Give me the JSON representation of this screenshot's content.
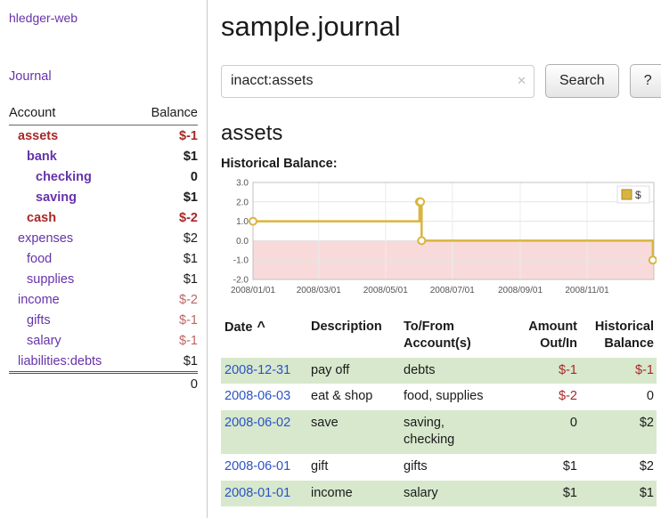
{
  "app": {
    "title": "hledger-web"
  },
  "sidebar": {
    "journal_link": "Journal",
    "account_table": {
      "header": {
        "account": "Account",
        "balance": "Balance"
      },
      "accounts": [
        {
          "name": "assets",
          "balance": "$-1",
          "indent": 0,
          "name_class": "neg bold",
          "bal_class": "neg bold"
        },
        {
          "name": "bank",
          "balance": "$1",
          "indent": 1,
          "name_class": "bold",
          "bal_class": "bold"
        },
        {
          "name": "checking",
          "balance": "0",
          "indent": 2,
          "name_class": "bold",
          "bal_class": "bold"
        },
        {
          "name": "saving",
          "balance": "$1",
          "indent": 2,
          "name_class": "bold",
          "bal_class": "bold"
        },
        {
          "name": "cash",
          "balance": "$-2",
          "indent": 1,
          "name_class": "neg bold",
          "bal_class": "neg bold"
        },
        {
          "name": "expenses",
          "balance": "$2",
          "indent": 0,
          "name_class": "",
          "bal_class": ""
        },
        {
          "name": "food",
          "balance": "$1",
          "indent": 1,
          "name_class": "",
          "bal_class": ""
        },
        {
          "name": "supplies",
          "balance": "$1",
          "indent": 1,
          "name_class": "",
          "bal_class": ""
        },
        {
          "name": "income",
          "balance": "$-2",
          "indent": 0,
          "name_class": "",
          "bal_class": "neg-light"
        },
        {
          "name": "gifts",
          "balance": "$-1",
          "indent": 1,
          "name_class": "",
          "bal_class": "neg-light"
        },
        {
          "name": "salary",
          "balance": "$-1",
          "indent": 1,
          "name_class": "",
          "bal_class": "neg-light"
        },
        {
          "name": "liabilities:debts",
          "balance": "$1",
          "indent": 0,
          "name_class": "",
          "bal_class": ""
        }
      ],
      "total": "0"
    }
  },
  "main": {
    "title": "sample.journal",
    "search": {
      "value": "inacct:assets",
      "clear_icon": "✕",
      "button_label": "Search",
      "help_label": "?"
    },
    "account_heading": "assets",
    "chart_title": "Historical Balance:"
  },
  "chart_data": {
    "type": "line",
    "style": "step-after",
    "title": "Historical Balance",
    "series": [
      {
        "name": "$",
        "color": "#d8b53e",
        "points": [
          [
            "2008-01-01",
            1
          ],
          [
            "2008-06-01",
            2
          ],
          [
            "2008-06-02",
            2
          ],
          [
            "2008-06-03",
            0
          ],
          [
            "2008-12-31",
            -1
          ]
        ]
      }
    ],
    "x_range": [
      "2008-01-01",
      "2009-01-01"
    ],
    "ylim": [
      -2,
      3
    ],
    "yticks": [
      3.0,
      2.0,
      1.0,
      0.0,
      -1.0,
      -2.0
    ],
    "xticks": [
      "2008/01/01",
      "2008/03/01",
      "2008/05/01",
      "2008/07/01",
      "2008/09/01",
      "2008/11/01"
    ],
    "legend_entries": [
      "$"
    ],
    "legend_position": "top-right",
    "grid": true,
    "negative_region_color": "#f9dada"
  },
  "register": {
    "headers": {
      "date": "Date",
      "sort_indicator": "^",
      "description": "Description",
      "accounts": "To/From\nAccount(s)",
      "amount": "Amount\nOut/In",
      "balance": "Historical\nBalance"
    },
    "rows": [
      {
        "date": "2008-12-31",
        "description": "pay off",
        "accounts": "debts",
        "amount": "$-1",
        "amount_negative": true,
        "balance": "$-1",
        "balance_negative": true
      },
      {
        "date": "2008-06-03",
        "description": "eat & shop",
        "accounts": "food, supplies",
        "amount": "$-2",
        "amount_negative": true,
        "balance": "0",
        "balance_negative": false
      },
      {
        "date": "2008-06-02",
        "description": "save",
        "accounts": "saving,\nchecking",
        "amount": "0",
        "amount_negative": false,
        "balance": "$2",
        "balance_negative": false
      },
      {
        "date": "2008-06-01",
        "description": "gift",
        "accounts": "gifts",
        "amount": "$1",
        "amount_negative": false,
        "balance": "$2",
        "balance_negative": false
      },
      {
        "date": "2008-01-01",
        "description": "income",
        "accounts": "salary",
        "amount": "$1",
        "amount_negative": false,
        "balance": "$1",
        "balance_negative": false
      }
    ]
  },
  "colors": {
    "purple": "#6633aa",
    "blue": "#2a52c8",
    "neg": "#a82828",
    "neg-light": "#bb6666",
    "green-row": "#d7e8cc",
    "gold": "#d8b53e",
    "pink": "#f9dada"
  }
}
